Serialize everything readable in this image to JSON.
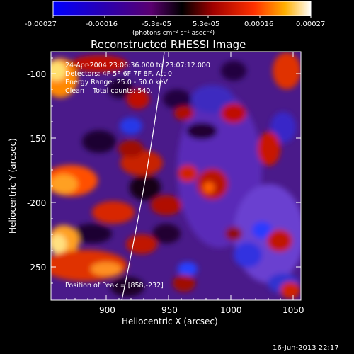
{
  "colorbar": {
    "tick_labels": [
      "-0.00027",
      "-0.00016",
      "-5.3e-05",
      "5.3e-05",
      "0.00016",
      "0.00027"
    ],
    "units": "(photons cm⁻² s⁻¹ asec⁻²)",
    "colors": [
      "#1010ff",
      "#3a00c8",
      "#6b00b0",
      "#900000",
      "#e02000",
      "#ff8c00",
      "#ffd040",
      "#ffffff"
    ]
  },
  "title": "Reconstructed RHESSI Image",
  "annotations": {
    "line1": "24-Apr-2004 23:06:36.000 to 23:07:12.000",
    "line2": "Detectors: 4F 5F 6F 7F 8F, Att 0",
    "line3": "Energy Range: 25.0 - 50.0 keV",
    "line4": "Clean    Total counts: 540.",
    "peak": "Position of Peak = [858,-232]"
  },
  "axes": {
    "xlabel": "Heliocentric X (arcsec)",
    "ylabel": "Heliocentric Y (arcsec)",
    "xticks": [
      "900",
      "950",
      "1000",
      "1050"
    ],
    "yticks": [
      "-100",
      "-150",
      "-200",
      "-250"
    ]
  },
  "footer_date": "16-Jun-2013 22:17"
}
